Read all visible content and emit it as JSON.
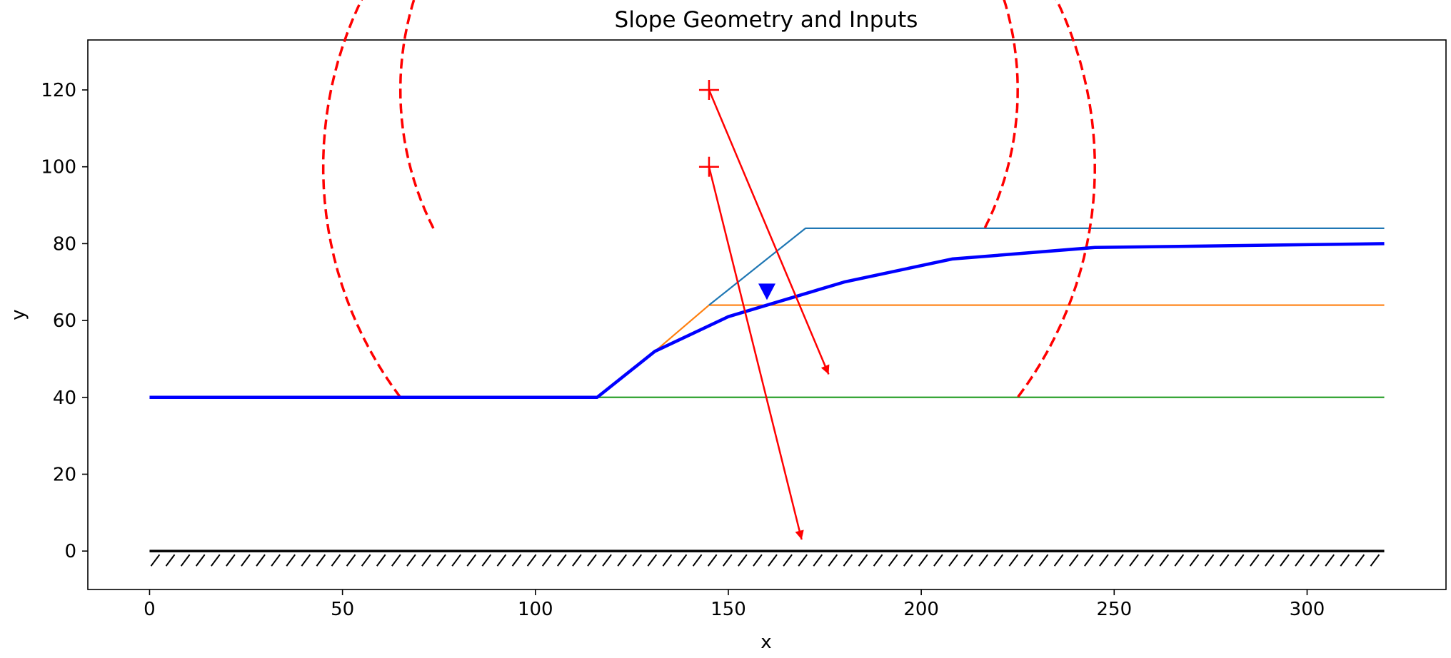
{
  "chart_data": {
    "type": "line",
    "title": "Slope Geometry and Inputs",
    "xlabel": "x",
    "ylabel": "y",
    "xlim": [
      -16,
      336
    ],
    "ylim": [
      -10,
      133
    ],
    "xticks": [
      0,
      50,
      100,
      150,
      200,
      250,
      300
    ],
    "yticks": [
      0,
      20,
      40,
      60,
      80,
      100,
      120
    ],
    "grid": false,
    "colors": {
      "layer_top": "#1f77b4",
      "layer_mid": "#ff7f0e",
      "layer_bottom": "#2ca02c",
      "water_table": "#0000ff",
      "failure": "#ff0000",
      "bedrock": "#000000"
    },
    "series": [
      {
        "role": "ground-surface-top-layer",
        "x": [
          0,
          116,
          131,
          145,
          170,
          320
        ],
        "y": [
          40,
          40,
          52,
          64,
          84,
          84
        ]
      },
      {
        "role": "layer-boundary-mid",
        "x": [
          145,
          320
        ],
        "y": [
          64,
          64
        ]
      },
      {
        "role": "layer-boundary-bottom",
        "x": [
          116,
          320
        ],
        "y": [
          40,
          40
        ]
      },
      {
        "role": "piezometric-line",
        "x": [
          0,
          116,
          131,
          150,
          180,
          208,
          245,
          320
        ],
        "y": [
          40,
          40,
          52,
          61,
          70,
          76,
          79,
          80
        ]
      }
    ],
    "water_table_marker": {
      "x": 160,
      "y": 67
    },
    "failure_circles": [
      {
        "center": [
          145,
          100
        ],
        "radius": 100,
        "y_cut": 40,
        "arrow_end": [
          169,
          3
        ]
      },
      {
        "center": [
          145,
          120
        ],
        "radius": 80,
        "y_cut": 84,
        "arrow_end": [
          176,
          46
        ]
      }
    ],
    "bedrock": {
      "x": [
        0,
        320
      ],
      "y": 0
    }
  }
}
